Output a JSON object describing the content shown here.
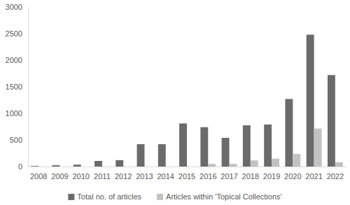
{
  "chart_data": {
    "type": "bar",
    "categories": [
      "2008",
      "2009",
      "2010",
      "2011",
      "2012",
      "2013",
      "2014",
      "2015",
      "2016",
      "2017",
      "2018",
      "2019",
      "2020",
      "2021",
      "2022"
    ],
    "series": [
      {
        "name": "Total no. of articles",
        "color": "#6b6b6b",
        "values": [
          10,
          25,
          35,
          105,
          120,
          420,
          420,
          810,
          740,
          540,
          775,
          790,
          1270,
          2480,
          1720
        ]
      },
      {
        "name": "Articles within 'Topical Collections'",
        "color": "#c2c2c2",
        "values": [
          0,
          0,
          0,
          0,
          0,
          0,
          0,
          0,
          50,
          50,
          115,
          150,
          235,
          715,
          80
        ]
      }
    ],
    "ylim": [
      0,
      3000
    ],
    "yticks": [
      0,
      500,
      1000,
      1500,
      2000,
      2500,
      3000
    ],
    "grid": false,
    "legend": "bottom"
  }
}
